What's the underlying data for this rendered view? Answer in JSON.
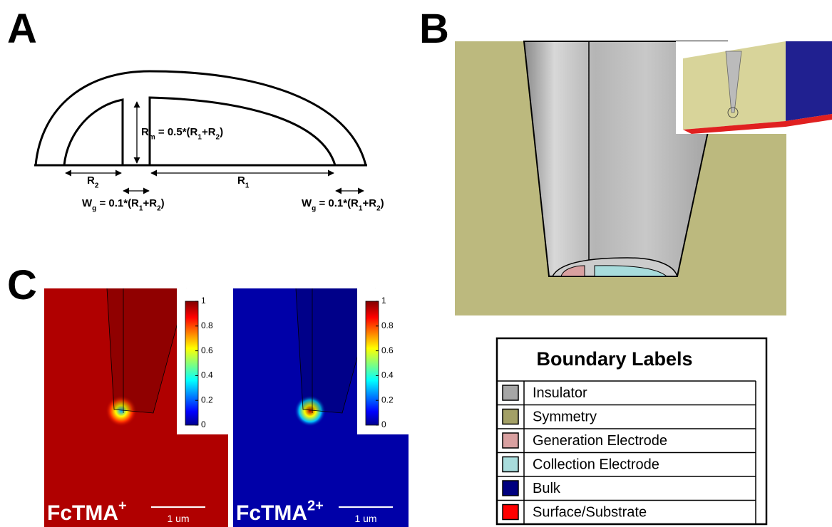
{
  "panel_labels": [
    "A",
    "B",
    "C"
  ],
  "panel_a": {
    "rm_label": [
      {
        "text": "R"
      },
      {
        "text": "m",
        "sub": true
      },
      {
        "text": " = 0.5*(R"
      },
      {
        "text": "1",
        "sub": true
      },
      {
        "text": "+R"
      },
      {
        "text": "2",
        "sub": true
      },
      {
        "text": ")"
      }
    ],
    "r2_label": [
      {
        "text": "R"
      },
      {
        "text": "2",
        "sub": true
      }
    ],
    "r1_label": [
      {
        "text": "R"
      },
      {
        "text": "1",
        "sub": true
      }
    ],
    "wg_labels": [
      [
        {
          "text": "W"
        },
        {
          "text": "g",
          "sub": true
        },
        {
          "text": " = 0.1*(R"
        },
        {
          "text": "1",
          "sub": true
        },
        {
          "text": "+R"
        },
        {
          "text": "2",
          "sub": true
        },
        {
          "text": ")"
        }
      ],
      [
        {
          "text": "W"
        },
        {
          "text": "g",
          "sub": true
        },
        {
          "text": " = 0.1*(R"
        },
        {
          "text": "1",
          "sub": true
        },
        {
          "text": "+R"
        },
        {
          "text": "2",
          "sub": true
        },
        {
          "text": ")"
        }
      ]
    ]
  },
  "panel_c": {
    "maps": [
      {
        "title": [
          {
            "text": "FcTMA"
          },
          {
            "text": "+",
            "sup": true
          }
        ],
        "scale_bar": "1 um",
        "background": "#b00000",
        "colorbar": {
          "range": [
            0,
            1
          ],
          "ticks": [
            0,
            0.2,
            0.4,
            0.6,
            0.8,
            1
          ]
        }
      },
      {
        "title": [
          {
            "text": "FcTMA"
          },
          {
            "text": "2+",
            "sup": true
          }
        ],
        "scale_bar": "1 um",
        "background": "#0000a8",
        "colorbar": {
          "range": [
            0,
            1
          ],
          "ticks": [
            0,
            0.2,
            0.4,
            0.6,
            0.8,
            1
          ]
        }
      }
    ]
  },
  "boundary_table": {
    "title": "Boundary Labels",
    "rows": [
      {
        "label": "Insulator",
        "color": "#a6a6a6"
      },
      {
        "label": "Symmetry",
        "color": "#a3a066"
      },
      {
        "label": "Generation Electrode",
        "color": "#d9a0a0"
      },
      {
        "label": "Collection Electrode",
        "color": "#a8dcdc"
      },
      {
        "label": "Bulk",
        "color": "#000080"
      },
      {
        "label": "Surface/Substrate",
        "color": "#ff0000"
      }
    ]
  }
}
